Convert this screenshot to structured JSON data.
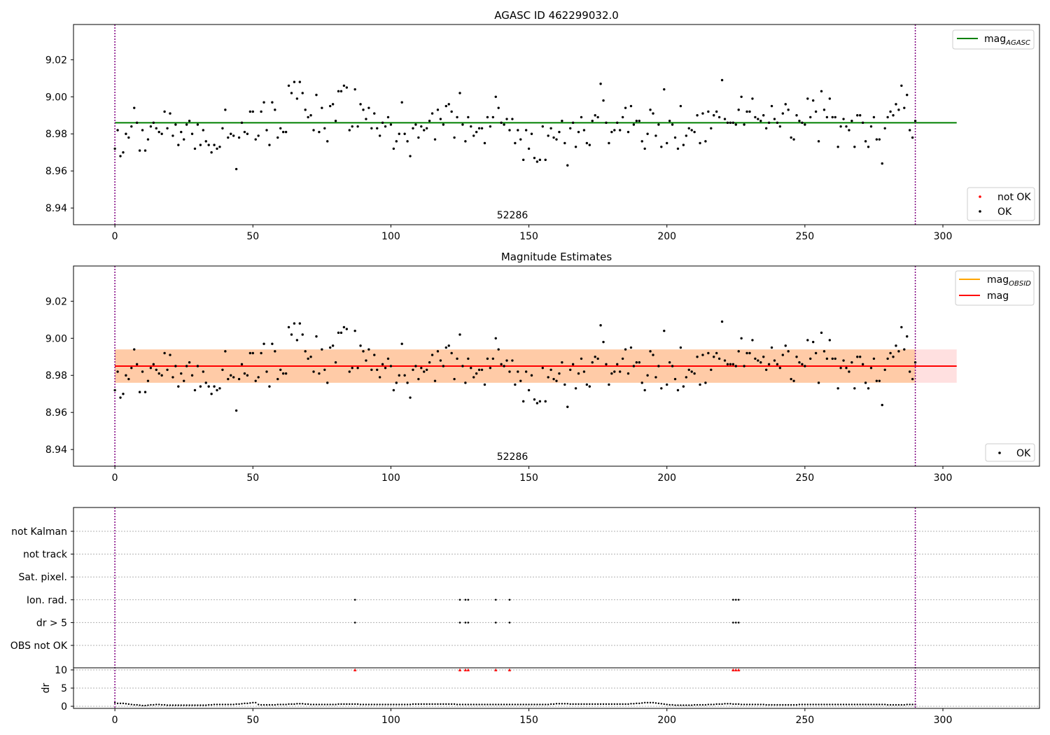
{
  "chart_data": [
    {
      "type": "scatter",
      "title": "AGASC ID 462299032.0",
      "xlim": [
        -15,
        335
      ],
      "ylim": [
        8.931,
        9.039
      ],
      "xticks": [
        0,
        50,
        100,
        150,
        200,
        250,
        300
      ],
      "yticks": [
        8.94,
        8.96,
        8.98,
        9.0,
        9.02
      ],
      "ytick_labels": [
        "8.94",
        "8.96",
        "8.98",
        "9.00",
        "9.02"
      ],
      "vlines": [
        0,
        290
      ],
      "vline_color": "#800080",
      "obsid_label": {
        "text": "52286",
        "x": 145
      },
      "hlines": [
        {
          "name": "mag",
          "sub": "AGASC",
          "value": 8.986,
          "x": [
            0,
            305
          ],
          "color": "#008000"
        }
      ],
      "legend_lines": {
        "position": "upper right",
        "entries": [
          {
            "name": "mag",
            "sub": "AGASC",
            "color": "#008000"
          }
        ]
      },
      "legend_points": {
        "position": "lower right",
        "entries": [
          {
            "name": "not OK",
            "color": "#ff0000"
          },
          {
            "name": "OK",
            "color": "#000000"
          }
        ]
      },
      "series": [
        {
          "name": "not OK",
          "color": "#ff0000",
          "x": [],
          "y": []
        },
        {
          "name": "OK",
          "color": "#000000",
          "x_start": 0,
          "x_step": 1,
          "y": [
            8.972,
            8.982,
            8.968,
            8.97,
            8.98,
            8.978,
            8.984,
            8.994,
            8.986,
            8.971,
            8.982,
            8.971,
            8.977,
            8.984,
            8.986,
            8.983,
            8.981,
            8.98,
            8.992,
            8.983,
            8.991,
            8.979,
            8.985,
            8.974,
            8.981,
            8.977,
            8.985,
            8.987,
            8.98,
            8.972,
            8.985,
            8.974,
            8.982,
            8.976,
            8.974,
            8.97,
            8.974,
            8.972,
            8.973,
            8.983,
            8.993,
            8.978,
            8.98,
            8.979,
            8.961,
            8.978,
            8.986,
            8.981,
            8.98,
            8.992,
            8.992,
            8.977,
            8.979,
            8.992,
            8.997,
            8.982,
            8.974,
            8.997,
            8.993,
            8.978,
            8.983,
            8.981,
            8.981,
            9.006,
            9.002,
            9.008,
            8.999,
            9.008,
            9.002,
            8.993,
            8.989,
            8.99,
            8.982,
            9.001,
            8.981,
            8.994,
            8.983,
            8.976,
            8.995,
            8.996,
            8.987,
            9.003,
            9.003,
            9.006,
            9.005,
            8.982,
            8.984,
            9.004,
            8.984,
            8.996,
            8.993,
            8.988,
            8.994,
            8.983,
            8.991,
            8.983,
            8.979,
            8.986,
            8.984,
            8.989,
            8.985,
            8.972,
            8.976,
            8.98,
            8.997,
            8.98,
            8.976,
            8.968,
            8.983,
            8.985,
            8.978,
            8.984,
            8.982,
            8.983,
            8.987,
            8.991,
            8.977,
            8.993,
            8.988,
            8.985,
            8.995,
            8.996,
            8.992,
            8.978,
            8.989,
            9.002,
            8.985,
            8.976,
            8.989,
            8.984,
            8.979,
            8.981,
            8.983,
            8.983,
            8.975,
            8.989,
            8.984,
            8.989,
            9.0,
            8.994,
            8.986,
            8.985,
            8.988,
            8.982,
            8.988,
            8.975,
            8.982,
            8.977,
            8.966,
            8.982,
            8.972,
            8.98,
            8.967,
            8.965,
            8.966,
            8.984,
            8.966,
            8.979,
            8.983,
            8.978,
            8.977,
            8.981,
            8.987,
            8.975,
            8.963,
            8.983,
            8.986,
            8.973,
            8.981,
            8.989,
            8.982,
            8.975,
            8.974,
            8.987,
            8.99,
            8.989,
            9.007,
            8.998,
            8.986,
            8.975,
            8.981,
            8.982,
            8.986,
            8.982,
            8.989,
            8.994,
            8.981,
            8.995,
            8.985,
            8.987,
            8.987,
            8.976,
            8.972,
            8.98,
            8.993,
            8.991,
            8.979,
            8.985,
            8.973,
            9.004,
            8.975,
            8.987,
            8.985,
            8.978,
            8.972,
            8.995,
            8.974,
            8.979,
            8.983,
            8.982,
            8.981,
            8.99,
            8.975,
            8.991,
            8.976,
            8.992,
            8.983,
            8.99,
            8.992,
            8.989,
            9.009,
            8.988,
            8.986,
            8.986,
            8.986,
            8.985,
            8.993,
            9.0,
            8.985,
            8.992,
            8.992,
            8.999,
            8.989,
            8.988,
            8.987,
            8.99,
            8.983,
            8.986,
            8.995,
            8.988,
            8.986,
            8.984,
            8.991,
            8.996,
            8.993,
            8.978,
            8.977,
            8.99,
            8.987,
            8.986,
            8.985,
            8.999,
            8.989,
            8.998,
            8.992,
            8.976,
            9.003,
            8.993,
            8.989,
            8.999,
            8.989,
            8.989,
            8.973,
            8.984,
            8.988,
            8.984,
            8.982,
            8.987,
            8.973,
            8.99,
            8.99,
            8.986,
            8.976,
            8.973,
            8.984,
            8.989,
            8.977,
            8.977,
            8.964,
            8.983,
            8.989,
            8.992,
            8.99,
            8.996,
            8.993,
            9.006,
            8.994,
            9.001,
            8.982,
            8.978,
            8.987
          ]
        }
      ]
    },
    {
      "type": "scatter",
      "title": "Magnitude Estimates",
      "xlim": [
        -15,
        335
      ],
      "ylim": [
        8.931,
        9.039
      ],
      "xticks": [
        0,
        50,
        100,
        150,
        200,
        250,
        300
      ],
      "yticks": [
        8.94,
        8.96,
        8.98,
        9.0,
        9.02
      ],
      "ytick_labels": [
        "8.94",
        "8.96",
        "8.98",
        "9.00",
        "9.02"
      ],
      "vlines": [
        0,
        290
      ],
      "vline_color": "#800080",
      "obsid_label": {
        "text": "52286",
        "x": 145
      },
      "bands": [
        {
          "name": "mag OBSID",
          "color": "#ffa500",
          "y": [
            8.976,
            8.994
          ],
          "x": [
            0,
            290
          ]
        },
        {
          "name": "mag",
          "color": "#ff0000",
          "y": [
            8.976,
            8.994
          ],
          "x": [
            0,
            305
          ]
        }
      ],
      "hlines": [
        {
          "name": "mag",
          "sub": "OBSID",
          "value": 8.985,
          "x": [
            0,
            290
          ],
          "color": "#ffa500"
        },
        {
          "name": "mag",
          "sub": "",
          "value": 8.985,
          "x": [
            0,
            305
          ],
          "color": "#ff0000"
        }
      ],
      "legend_lines": {
        "position": "upper right",
        "entries": [
          {
            "name": "mag",
            "sub": "OBSID",
            "color": "#ffa500"
          },
          {
            "name": "mag",
            "sub": "",
            "color": "#ff0000"
          }
        ]
      },
      "legend_points": {
        "position": "lower right",
        "entries": [
          {
            "name": "OK",
            "color": "#000000"
          }
        ]
      },
      "series": [
        {
          "name": "OK",
          "color": "#000000",
          "same_as_chart": 0
        }
      ]
    },
    {
      "type": "scatter",
      "title": "",
      "xlim": [
        -15,
        335
      ],
      "xticks": [
        0,
        50,
        100,
        150,
        200,
        250,
        300
      ],
      "vlines": [
        0,
        290
      ],
      "vline_color": "#800080",
      "flag_rows": [
        "not Kalman",
        "not track",
        "Sat. pixel.",
        "Ion. rad.",
        "dr > 5",
        "OBS not OK"
      ],
      "flag_points": [
        {
          "row": "Ion. rad.",
          "x": [
            87,
            125,
            127,
            128,
            138,
            143,
            224,
            225,
            226
          ]
        },
        {
          "row": "dr > 5",
          "x": [
            87,
            125,
            127,
            128,
            138,
            143,
            224,
            225,
            226
          ]
        }
      ],
      "dr": {
        "ylabel": "dr",
        "ylim": [
          -0.5,
          10.5
        ],
        "yticks": [
          0,
          5,
          10
        ],
        "ytick_labels": [
          "0",
          "5",
          "10"
        ],
        "threshold": 10,
        "outliers_x": [
          87,
          125,
          127,
          128,
          138,
          143,
          224,
          225,
          226
        ],
        "outliers_color": "#ff0000",
        "x_start": 0,
        "x_step": 1,
        "y": [
          1.0,
          0.8,
          0.8,
          0.8,
          0.7,
          0.6,
          0.5,
          0.4,
          0.4,
          0.3,
          0.2,
          0.2,
          0.3,
          0.4,
          0.4,
          0.5,
          0.5,
          0.4,
          0.4,
          0.3,
          0.3,
          0.3,
          0.3,
          0.3,
          0.3,
          0.3,
          0.3,
          0.3,
          0.3,
          0.3,
          0.3,
          0.3,
          0.3,
          0.3,
          0.4,
          0.4,
          0.5,
          0.5,
          0.5,
          0.5,
          0.5,
          0.5,
          0.5,
          0.5,
          0.6,
          0.6,
          0.7,
          0.8,
          0.8,
          0.9,
          1.0,
          1.0,
          0.5,
          0.4,
          0.4,
          0.4,
          0.4,
          0.4,
          0.4,
          0.5,
          0.5,
          0.5,
          0.5,
          0.6,
          0.6,
          0.6,
          0.7,
          0.7,
          0.7,
          0.6,
          0.6,
          0.5,
          0.5,
          0.5,
          0.5,
          0.5,
          0.5,
          0.5,
          0.5,
          0.5,
          0.5,
          0.6,
          0.6,
          0.6,
          0.6,
          0.6,
          0.6,
          0.6,
          0.6,
          0.5,
          0.5,
          0.5,
          0.5,
          0.5,
          0.5,
          0.5,
          0.5,
          0.5,
          0.5,
          0.5,
          0.5,
          0.5,
          0.5,
          0.5,
          0.5,
          0.5,
          0.5,
          0.5,
          0.6,
          0.6,
          0.6,
          0.6,
          0.6,
          0.6,
          0.6,
          0.6,
          0.6,
          0.6,
          0.6,
          0.6,
          0.6,
          0.6,
          0.6,
          0.6,
          0.5,
          0.5,
          0.5,
          0.5,
          0.5,
          0.5,
          0.5,
          0.5,
          0.5,
          0.5,
          0.5,
          0.5,
          0.5,
          0.5,
          0.5,
          0.5,
          0.5,
          0.5,
          0.5,
          0.5,
          0.5,
          0.5,
          0.5,
          0.5,
          0.5,
          0.5,
          0.5,
          0.5,
          0.5,
          0.5,
          0.5,
          0.5,
          0.5,
          0.5,
          0.6,
          0.6,
          0.7,
          0.7,
          0.7,
          0.7,
          0.7,
          0.6,
          0.6,
          0.6,
          0.6,
          0.6,
          0.6,
          0.6,
          0.6,
          0.6,
          0.6,
          0.6,
          0.6,
          0.6,
          0.6,
          0.6,
          0.6,
          0.6,
          0.6,
          0.6,
          0.6,
          0.6,
          0.6,
          0.7,
          0.7,
          0.8,
          0.8,
          0.9,
          1.0,
          1.0,
          1.0,
          1.0,
          0.9,
          0.8,
          0.7,
          0.6,
          0.5,
          0.4,
          0.4,
          0.3,
          0.3,
          0.3,
          0.3,
          0.3,
          0.3,
          0.3,
          0.4,
          0.4,
          0.4,
          0.4,
          0.4,
          0.5,
          0.5,
          0.5,
          0.6,
          0.6,
          0.6,
          0.7,
          0.7,
          0.7,
          0.6,
          0.6,
          0.6,
          0.5,
          0.5,
          0.5,
          0.5,
          0.5,
          0.5,
          0.5,
          0.5,
          0.5,
          0.4,
          0.4,
          0.4,
          0.4,
          0.4,
          0.4,
          0.4,
          0.4,
          0.4,
          0.4,
          0.4,
          0.4,
          0.5,
          0.5,
          0.5,
          0.5,
          0.5,
          0.5,
          0.5,
          0.5,
          0.5,
          0.5,
          0.5,
          0.5,
          0.5,
          0.5,
          0.5,
          0.5,
          0.5,
          0.5,
          0.5,
          0.5,
          0.5,
          0.5,
          0.5,
          0.5,
          0.5,
          0.5,
          0.5,
          0.5,
          0.5,
          0.5,
          0.5,
          0.5,
          0.4,
          0.4,
          0.4,
          0.4,
          0.4,
          0.4,
          0.4,
          0.5,
          0.5,
          0.5,
          0.5
        ]
      }
    }
  ]
}
